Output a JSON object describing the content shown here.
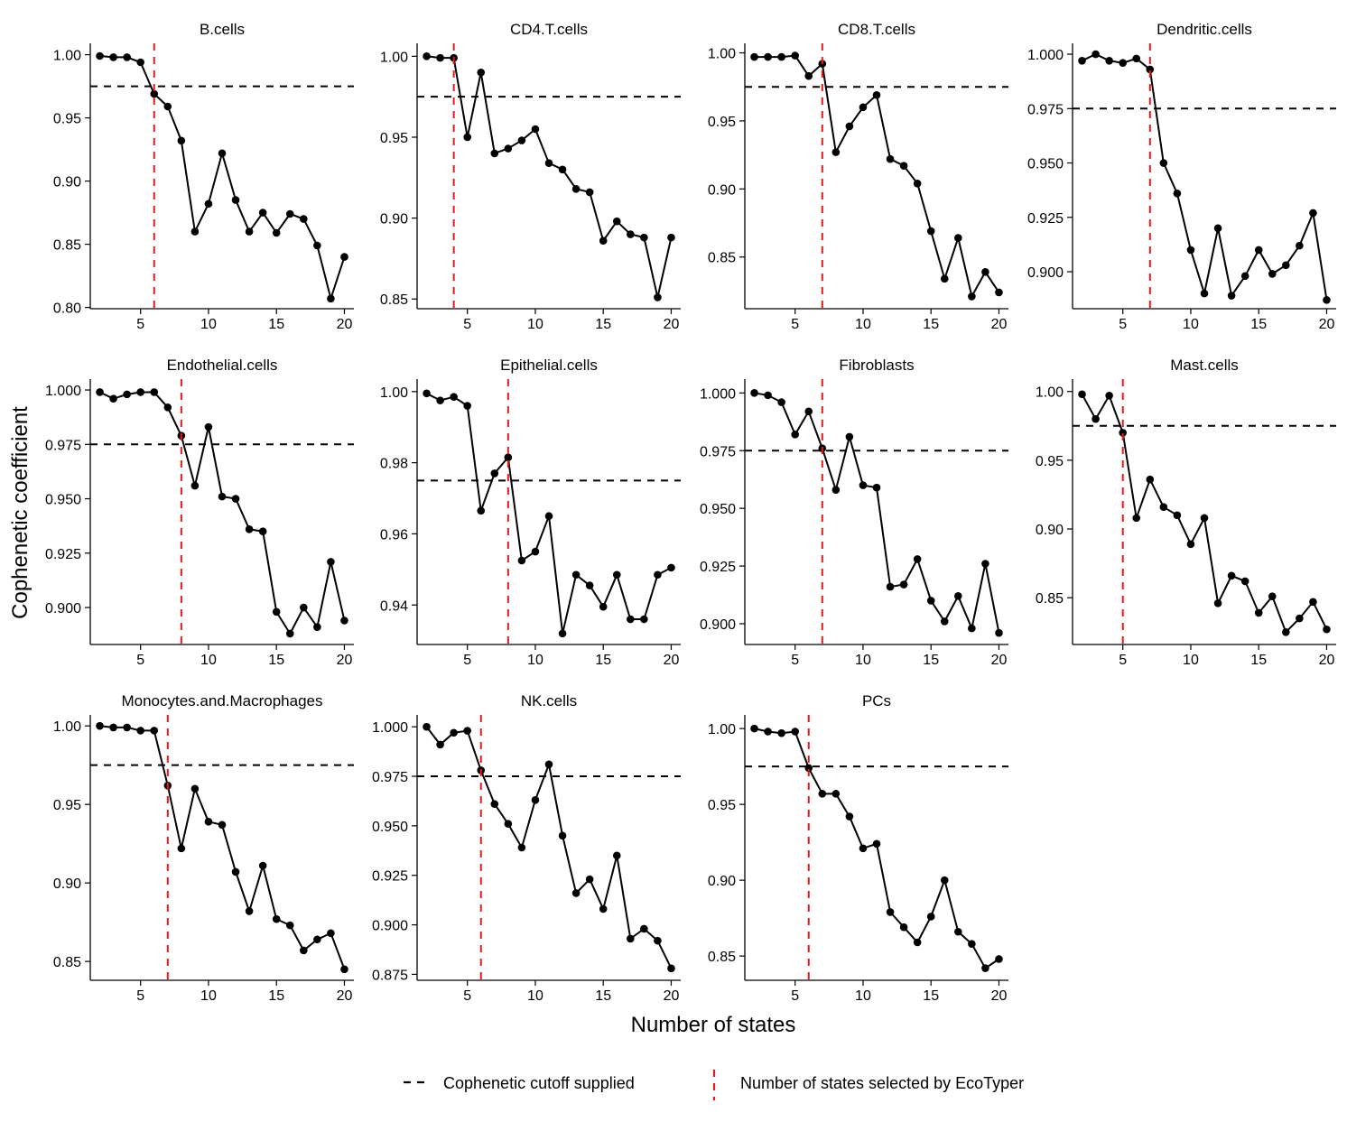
{
  "figure": {
    "ylabel": "Cophenetic coefficient",
    "xlabel": "Number of states",
    "legend": {
      "cutoff_label": "Cophenetic cutoff supplied",
      "selected_label": "Number of states selected by EcoTyper"
    },
    "colors": {
      "line": "#000000",
      "cutoff": "#000000",
      "selected": "#e41a1c"
    }
  },
  "chart_data": [
    {
      "type": "line",
      "title": "B.cells",
      "x": [
        2,
        3,
        4,
        5,
        6,
        7,
        8,
        9,
        10,
        11,
        12,
        13,
        14,
        15,
        16,
        17,
        18,
        19,
        20
      ],
      "y": [
        0.999,
        0.998,
        0.998,
        0.994,
        0.969,
        0.959,
        0.932,
        0.86,
        0.882,
        0.922,
        0.885,
        0.86,
        0.875,
        0.859,
        0.874,
        0.87,
        0.849,
        0.807,
        0.84
      ],
      "xlim": [
        1.3,
        20.7
      ],
      "ylim": [
        0.799,
        1.009
      ],
      "xticks": [
        5,
        10,
        15,
        20
      ],
      "xtick_labels": [
        "5",
        "10",
        "15",
        "20"
      ],
      "yticks": [
        0.8,
        0.85,
        0.9,
        0.95,
        1.0
      ],
      "ytick_labels": [
        "0.80",
        "0.85",
        "0.90",
        "0.95",
        "1.00"
      ],
      "cutoff": 0.975,
      "selected": 6
    },
    {
      "type": "line",
      "title": "CD4.T.cells",
      "x": [
        2,
        3,
        4,
        5,
        6,
        7,
        8,
        9,
        10,
        11,
        12,
        13,
        14,
        15,
        16,
        17,
        18,
        19,
        20
      ],
      "y": [
        1.0,
        0.999,
        0.999,
        0.95,
        0.99,
        0.94,
        0.943,
        0.948,
        0.955,
        0.934,
        0.93,
        0.918,
        0.916,
        0.886,
        0.898,
        0.89,
        0.888,
        0.851,
        0.888
      ],
      "xlim": [
        1.3,
        20.7
      ],
      "ylim": [
        0.844,
        1.008
      ],
      "xticks": [
        5,
        10,
        15,
        20
      ],
      "xtick_labels": [
        "5",
        "10",
        "15",
        "20"
      ],
      "yticks": [
        0.85,
        0.9,
        0.95,
        1.0
      ],
      "ytick_labels": [
        "0.85",
        "0.90",
        "0.95",
        "1.00"
      ],
      "cutoff": 0.975,
      "selected": 4
    },
    {
      "type": "line",
      "title": "CD8.T.cells",
      "x": [
        2,
        3,
        4,
        5,
        6,
        7,
        8,
        9,
        10,
        11,
        12,
        13,
        14,
        15,
        16,
        17,
        18,
        19,
        20
      ],
      "y": [
        0.997,
        0.997,
        0.997,
        0.998,
        0.983,
        0.992,
        0.927,
        0.946,
        0.96,
        0.969,
        0.922,
        0.917,
        0.904,
        0.869,
        0.834,
        0.864,
        0.821,
        0.839,
        0.824
      ],
      "xlim": [
        1.3,
        20.7
      ],
      "ylim": [
        0.812,
        1.007
      ],
      "xticks": [
        5,
        10,
        15,
        20
      ],
      "xtick_labels": [
        "5",
        "10",
        "15",
        "20"
      ],
      "yticks": [
        0.85,
        0.9,
        0.95,
        1.0
      ],
      "ytick_labels": [
        "0.85",
        "0.90",
        "0.95",
        "1.00"
      ],
      "cutoff": 0.975,
      "selected": 7
    },
    {
      "type": "line",
      "title": "Dendritic.cells",
      "x": [
        2,
        3,
        4,
        5,
        6,
        7,
        8,
        9,
        10,
        11,
        12,
        13,
        14,
        15,
        16,
        17,
        18,
        19,
        20
      ],
      "y": [
        0.997,
        1.0,
        0.997,
        0.996,
        0.998,
        0.993,
        0.95,
        0.936,
        0.91,
        0.89,
        0.92,
        0.889,
        0.898,
        0.91,
        0.899,
        0.903,
        0.912,
        0.927,
        0.887
      ],
      "xlim": [
        1.3,
        20.7
      ],
      "ylim": [
        0.883,
        1.005
      ],
      "xticks": [
        5,
        10,
        15,
        20
      ],
      "xtick_labels": [
        "5",
        "10",
        "15",
        "20"
      ],
      "yticks": [
        0.9,
        0.925,
        0.95,
        0.975,
        1.0
      ],
      "ytick_labels": [
        "0.900",
        "0.925",
        "0.950",
        "0.975",
        "1.000"
      ],
      "cutoff": 0.975,
      "selected": 7
    },
    {
      "type": "line",
      "title": "Endothelial.cells",
      "x": [
        2,
        3,
        4,
        5,
        6,
        7,
        8,
        9,
        10,
        11,
        12,
        13,
        14,
        15,
        16,
        17,
        18,
        19,
        20
      ],
      "y": [
        0.999,
        0.996,
        0.998,
        0.999,
        0.999,
        0.992,
        0.979,
        0.956,
        0.983,
        0.951,
        0.95,
        0.936,
        0.935,
        0.898,
        0.888,
        0.9,
        0.891,
        0.921,
        0.894
      ],
      "xlim": [
        1.3,
        20.7
      ],
      "ylim": [
        0.883,
        1.005
      ],
      "xticks": [
        5,
        10,
        15,
        20
      ],
      "xtick_labels": [
        "5",
        "10",
        "15",
        "20"
      ],
      "yticks": [
        0.9,
        0.925,
        0.95,
        0.975,
        1.0
      ],
      "ytick_labels": [
        "0.900",
        "0.925",
        "0.950",
        "0.975",
        "1.000"
      ],
      "cutoff": 0.975,
      "selected": 8
    },
    {
      "type": "line",
      "title": "Epithelial.cells",
      "x": [
        2,
        3,
        4,
        5,
        6,
        7,
        8,
        9,
        10,
        11,
        12,
        13,
        14,
        15,
        16,
        17,
        18,
        19,
        20
      ],
      "y": [
        0.9995,
        0.9975,
        0.9985,
        0.996,
        0.9665,
        0.977,
        0.9815,
        0.9525,
        0.955,
        0.965,
        0.932,
        0.9485,
        0.9455,
        0.9395,
        0.9485,
        0.936,
        0.936,
        0.9485,
        0.9505
      ],
      "xlim": [
        1.3,
        20.7
      ],
      "ylim": [
        0.9289,
        1.0035
      ],
      "xticks": [
        5,
        10,
        15,
        20
      ],
      "xtick_labels": [
        "5",
        "10",
        "15",
        "20"
      ],
      "yticks": [
        0.94,
        0.96,
        0.98,
        1.0
      ],
      "ytick_labels": [
        "0.94",
        "0.96",
        "0.98",
        "1.00"
      ],
      "cutoff": 0.975,
      "selected": 8
    },
    {
      "type": "line",
      "title": "Fibroblasts",
      "x": [
        2,
        3,
        4,
        5,
        6,
        7,
        8,
        9,
        10,
        11,
        12,
        13,
        14,
        15,
        16,
        17,
        18,
        19,
        20
      ],
      "y": [
        1.0,
        0.999,
        0.996,
        0.982,
        0.992,
        0.976,
        0.958,
        0.981,
        0.96,
        0.959,
        0.916,
        0.917,
        0.928,
        0.91,
        0.901,
        0.912,
        0.898,
        0.926,
        0.896
      ],
      "xlim": [
        1.3,
        20.7
      ],
      "ylim": [
        0.891,
        1.006
      ],
      "xticks": [
        5,
        10,
        15,
        20
      ],
      "xtick_labels": [
        "5",
        "10",
        "15",
        "20"
      ],
      "yticks": [
        0.9,
        0.925,
        0.95,
        0.975,
        1.0
      ],
      "ytick_labels": [
        "0.900",
        "0.925",
        "0.950",
        "0.975",
        "1.000"
      ],
      "cutoff": 0.975,
      "selected": 7
    },
    {
      "type": "line",
      "title": "Mast.cells",
      "x": [
        2,
        3,
        4,
        5,
        6,
        7,
        8,
        9,
        10,
        11,
        12,
        13,
        14,
        15,
        16,
        17,
        18,
        19,
        20
      ],
      "y": [
        0.998,
        0.98,
        0.997,
        0.97,
        0.908,
        0.936,
        0.916,
        0.91,
        0.889,
        0.908,
        0.846,
        0.866,
        0.862,
        0.839,
        0.851,
        0.825,
        0.835,
        0.847,
        0.827
      ],
      "xlim": [
        1.3,
        20.7
      ],
      "ylim": [
        0.816,
        1.009
      ],
      "xticks": [
        5,
        10,
        15,
        20
      ],
      "xtick_labels": [
        "5",
        "10",
        "15",
        "20"
      ],
      "yticks": [
        0.85,
        0.9,
        0.95,
        1.0
      ],
      "ytick_labels": [
        "0.85",
        "0.90",
        "0.95",
        "1.00"
      ],
      "cutoff": 0.975,
      "selected": 5
    },
    {
      "type": "line",
      "title": "Monocytes.and.Macrophages",
      "x": [
        2,
        3,
        4,
        5,
        6,
        7,
        8,
        9,
        10,
        11,
        12,
        13,
        14,
        15,
        16,
        17,
        18,
        19,
        20
      ],
      "y": [
        1.0,
        0.999,
        0.999,
        0.997,
        0.997,
        0.962,
        0.922,
        0.96,
        0.939,
        0.937,
        0.907,
        0.882,
        0.911,
        0.877,
        0.873,
        0.857,
        0.864,
        0.868,
        0.845
      ],
      "xlim": [
        1.3,
        20.7
      ],
      "ylim": [
        0.838,
        1.007
      ],
      "xticks": [
        5,
        10,
        15,
        20
      ],
      "xtick_labels": [
        "5",
        "10",
        "15",
        "20"
      ],
      "yticks": [
        0.85,
        0.9,
        0.95,
        1.0
      ],
      "ytick_labels": [
        "0.85",
        "0.90",
        "0.95",
        "1.00"
      ],
      "cutoff": 0.975,
      "selected": 7
    },
    {
      "type": "line",
      "title": "NK.cells",
      "x": [
        2,
        3,
        4,
        5,
        6,
        7,
        8,
        9,
        10,
        11,
        12,
        13,
        14,
        15,
        16,
        17,
        18,
        19,
        20
      ],
      "y": [
        1.0,
        0.991,
        0.997,
        0.998,
        0.978,
        0.961,
        0.951,
        0.939,
        0.963,
        0.981,
        0.945,
        0.916,
        0.923,
        0.908,
        0.935,
        0.893,
        0.898,
        0.892,
        0.878
      ],
      "xlim": [
        1.3,
        20.7
      ],
      "ylim": [
        0.872,
        1.006
      ],
      "xticks": [
        5,
        10,
        15,
        20
      ],
      "xtick_labels": [
        "5",
        "10",
        "15",
        "20"
      ],
      "yticks": [
        0.875,
        0.9,
        0.925,
        0.95,
        0.975,
        1.0
      ],
      "ytick_labels": [
        "0.875",
        "0.900",
        "0.925",
        "0.950",
        "0.975",
        "1.000"
      ],
      "cutoff": 0.975,
      "selected": 6
    },
    {
      "type": "line",
      "title": "PCs",
      "x": [
        2,
        3,
        4,
        5,
        6,
        7,
        8,
        9,
        10,
        11,
        12,
        13,
        14,
        15,
        16,
        17,
        18,
        19,
        20
      ],
      "y": [
        1.0,
        0.998,
        0.997,
        0.998,
        0.974,
        0.957,
        0.957,
        0.942,
        0.921,
        0.924,
        0.879,
        0.869,
        0.859,
        0.876,
        0.9,
        0.866,
        0.858,
        0.842,
        0.848
      ],
      "xlim": [
        1.3,
        20.7
      ],
      "ylim": [
        0.834,
        1.009
      ],
      "xticks": [
        5,
        10,
        15,
        20
      ],
      "xtick_labels": [
        "5",
        "10",
        "15",
        "20"
      ],
      "yticks": [
        0.85,
        0.9,
        0.95,
        1.0
      ],
      "ytick_labels": [
        "0.85",
        "0.90",
        "0.95",
        "1.00"
      ],
      "cutoff": 0.975,
      "selected": 6
    }
  ]
}
